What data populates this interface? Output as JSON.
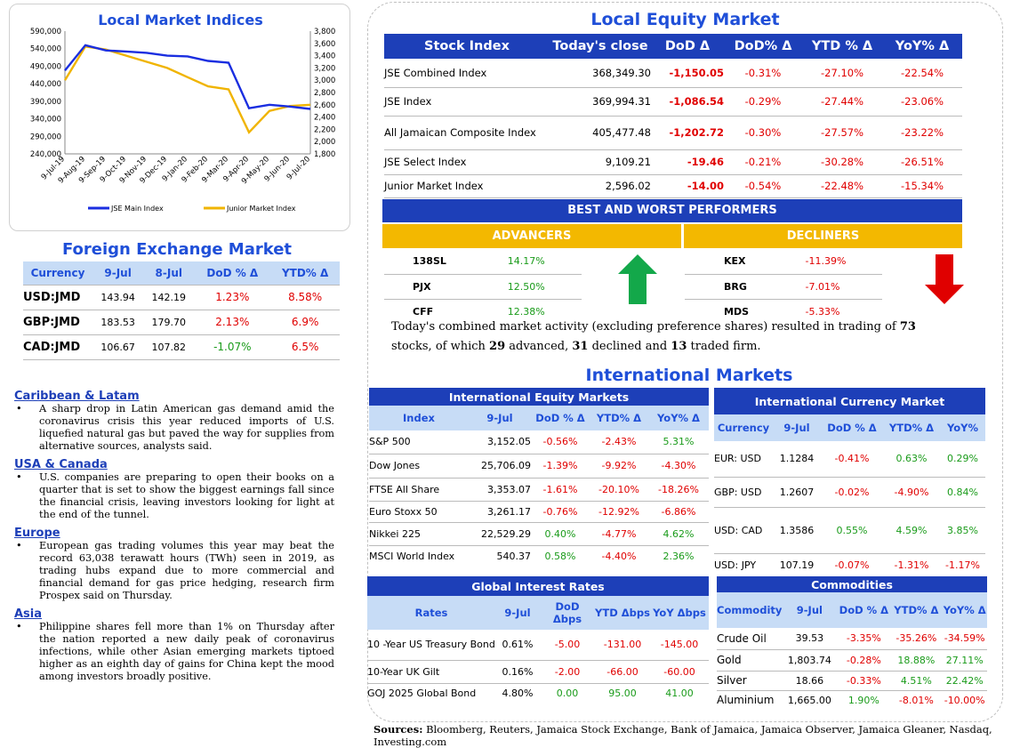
{
  "chart": {
    "title": "Local Market Indices",
    "left_ticks": [
      "590,000",
      "540,000",
      "490,000",
      "440,000",
      "390,000",
      "340,000",
      "290,000",
      "240,000"
    ],
    "right_ticks": [
      "3,800",
      "3,600",
      "3,400",
      "3,200",
      "3,000",
      "2,800",
      "2,600",
      "2,400",
      "2,200",
      "2,000",
      "1,800"
    ],
    "x_ticks": [
      "9-Jul-19",
      "9-Aug-19",
      "9-Sep-19",
      "9-Oct-19",
      "9-Nov-19",
      "9-Dec-19",
      "9-Jan-20",
      "9-Feb-20",
      "9-Mar-20",
      "9-Apr-20",
      "9-May-20",
      "9-Jun-20",
      "9-Jul-20"
    ],
    "legend": [
      "JSE Main Index",
      "Junior Market Index"
    ],
    "colors": {
      "main": "#1a2ee0",
      "junior": "#f0b400"
    }
  },
  "chart_data": {
    "type": "line",
    "x": [
      "9-Jul-19",
      "9-Aug-19",
      "9-Sep-19",
      "9-Oct-19",
      "9-Nov-19",
      "9-Dec-19",
      "9-Jan-20",
      "9-Feb-20",
      "9-Mar-20",
      "9-Apr-20",
      "9-May-20",
      "9-Jun-20",
      "9-Jul-20"
    ],
    "series": [
      {
        "name": "JSE Main Index",
        "axis": "left",
        "values": [
          478000,
          550000,
          535000,
          532000,
          528000,
          520000,
          518000,
          505000,
          500000,
          370000,
          380000,
          375000,
          368000
        ]
      },
      {
        "name": "Junior Market Index",
        "axis": "right",
        "values": [
          3000,
          3550,
          3500,
          3400,
          3300,
          3200,
          3050,
          2900,
          2850,
          2150,
          2500,
          2580,
          2600
        ]
      }
    ],
    "ylim_left": [
      240000,
      590000
    ],
    "ylim_right": [
      1800,
      3800
    ]
  },
  "fx": {
    "title": "Foreign Exchange Market",
    "headers": [
      "Currency",
      "9-Jul",
      "8-Jul",
      "DoD % Δ",
      "YTD% Δ"
    ],
    "rows": [
      [
        "USD:JMD",
        "143.94",
        "142.19",
        "1.23%",
        "8.58%"
      ],
      [
        "GBP:JMD",
        "183.53",
        "179.70",
        "2.13%",
        "6.9%"
      ],
      [
        "CAD:JMD",
        "106.67",
        "107.82",
        "-1.07%",
        "6.5%"
      ]
    ]
  },
  "news": [
    {
      "heading": "Caribbean & Latam",
      "text": "A sharp drop in Latin American gas demand amid the coronavirus crisis this year reduced imports of U.S. liquefied natural gas but paved the way for supplies from alternative sources, analysts said."
    },
    {
      "heading": "USA & Canada",
      "text": "U.S. companies are preparing to open their books on a quarter that is set to show the biggest earnings fall since the financial crisis, leaving investors looking for light at the end of the tunnel."
    },
    {
      "heading": "Europe",
      "text": "European gas trading volumes this year may beat the record 63,038 terawatt hours (TWh) seen in 2019, as trading hubs expand due to more commercial and financial demand for gas price hedging, research firm Prospex said on Thursday."
    },
    {
      "heading": "Asia",
      "text": "Philippine shares fell more than 1% on Thursday after the nation reported a new daily peak of coronavirus infections, while other Asian emerging markets tiptoed higher as an eighth day of gains for China kept the mood among investors broadly positive."
    }
  ],
  "equity": {
    "title": "Local Equity Market",
    "headers": [
      "Stock Index",
      "Today's close",
      "DoD  Δ",
      "DoD% Δ",
      "YTD % Δ",
      "YoY% Δ"
    ],
    "rows": [
      [
        "JSE Combined Index",
        "368,349.30",
        "-1,150.05",
        "-0.31%",
        "-27.10%",
        "-22.54%"
      ],
      [
        "JSE Index",
        "369,994.31",
        "-1,086.54",
        "-0.29%",
        "-27.44%",
        "-23.06%"
      ],
      [
        "All Jamaican Composite Index",
        "405,477.48",
        "-1,202.72",
        "-0.30%",
        "-27.57%",
        "-23.22%"
      ],
      [
        "JSE Select Index",
        "9,109.21",
        "-19.46",
        "-0.21%",
        "-30.28%",
        "-26.51%"
      ],
      [
        "Junior Market Index",
        "2,596.02",
        "-14.00",
        "-0.54%",
        "-22.48%",
        "-15.34%"
      ]
    ]
  },
  "performers": {
    "title": "BEST AND WORST PERFORMERS",
    "advancers_label": "ADVANCERS",
    "decliners_label": "DECLINERS",
    "advancers": [
      [
        "138SL",
        "14.17%"
      ],
      [
        "PJX",
        "12.50%"
      ],
      [
        "CFF",
        "12.38%"
      ]
    ],
    "decliners": [
      [
        "KEX",
        "-11.39%"
      ],
      [
        "BRG",
        "-7.01%"
      ],
      [
        "MDS",
        "-5.33%"
      ]
    ]
  },
  "summary": {
    "p1": "Today's combined market activity (excluding preference shares) resulted in trading of ",
    "n1": "73",
    "p2": " stocks, of which ",
    "n2": "29",
    "p3": " advanced, ",
    "n3": "31",
    "p4": " declined and ",
    "n4": "13",
    "p5": " traded firm."
  },
  "intl_title": "International Markets",
  "intl_equity": {
    "title": "International Equity Markets",
    "headers": [
      "Index",
      "9-Jul",
      "DoD % Δ",
      "YTD% Δ",
      "YoY% Δ"
    ],
    "rows": [
      [
        "S&P 500",
        "3,152.05",
        "-0.56%",
        "-2.43%",
        "5.31%"
      ],
      [
        "Dow Jones",
        "25,706.09",
        "-1.39%",
        "-9.92%",
        "-4.30%"
      ],
      [
        "FTSE All Share",
        "3,353.07",
        "-1.61%",
        "-20.10%",
        "-18.26%"
      ],
      [
        "Euro Stoxx 50",
        "3,261.17",
        "-0.76%",
        "-12.92%",
        "-6.86%"
      ],
      [
        "Nikkei 225",
        "22,529.29",
        "0.40%",
        "-4.77%",
        "4.62%"
      ],
      [
        "MSCI World Index",
        "540.37",
        "0.58%",
        "-4.40%",
        "2.36%"
      ]
    ]
  },
  "intl_currency": {
    "title": "International Currency Market",
    "headers": [
      "Currency",
      "9-Jul",
      "DoD % Δ",
      "YTD% Δ",
      "YoY%"
    ],
    "rows": [
      [
        "EUR: USD",
        "1.1284",
        "-0.41%",
        "0.63%",
        "0.29%"
      ],
      [
        "GBP: USD",
        "1.2607",
        "-0.02%",
        "-4.90%",
        "0.84%"
      ],
      [
        "USD: CAD",
        "1.3586",
        "0.55%",
        "4.59%",
        "3.85%"
      ],
      [
        "USD: JPY",
        "107.19",
        "-0.07%",
        "-1.31%",
        "-1.17%"
      ]
    ]
  },
  "rates": {
    "title": "Global Interest Rates",
    "headers": [
      "Rates",
      "9-Jul",
      "DoD Δbps",
      "YTD Δbps",
      "YoY Δbps"
    ],
    "rows": [
      [
        "10 -Year US Treasury Bond",
        "0.61%",
        "-5.00",
        "-131.00",
        "-145.00"
      ],
      [
        "10-Year UK Gilt",
        "0.16%",
        "-2.00",
        "-66.00",
        "-60.00"
      ],
      [
        "GOJ 2025 Global Bond",
        "4.80%",
        "0.00",
        "95.00",
        "41.00"
      ]
    ]
  },
  "commodities": {
    "title": "Commodities",
    "headers": [
      "Commodity",
      "9-Jul",
      "DoD % Δ",
      "YTD% Δ",
      "YoY% Δ"
    ],
    "rows": [
      [
        "Crude Oil",
        "39.53",
        "-3.35%",
        "-35.26%",
        "-34.59%"
      ],
      [
        "Gold",
        "1,803.74",
        "-0.28%",
        "18.88%",
        "27.11%"
      ],
      [
        "Silver",
        "18.66",
        "-0.33%",
        "4.51%",
        "22.42%"
      ],
      [
        "Aluminium",
        "1,665.00",
        "1.90%",
        "-8.01%",
        "-10.00%"
      ]
    ]
  },
  "sources": {
    "label": "Sources:",
    "text": " Bloomberg, Reuters, Jamaica Stock Exchange, Bank of Jamaica, Jamaica Observer, Jamaica Gleaner, Nasdaq, Investing.com"
  }
}
